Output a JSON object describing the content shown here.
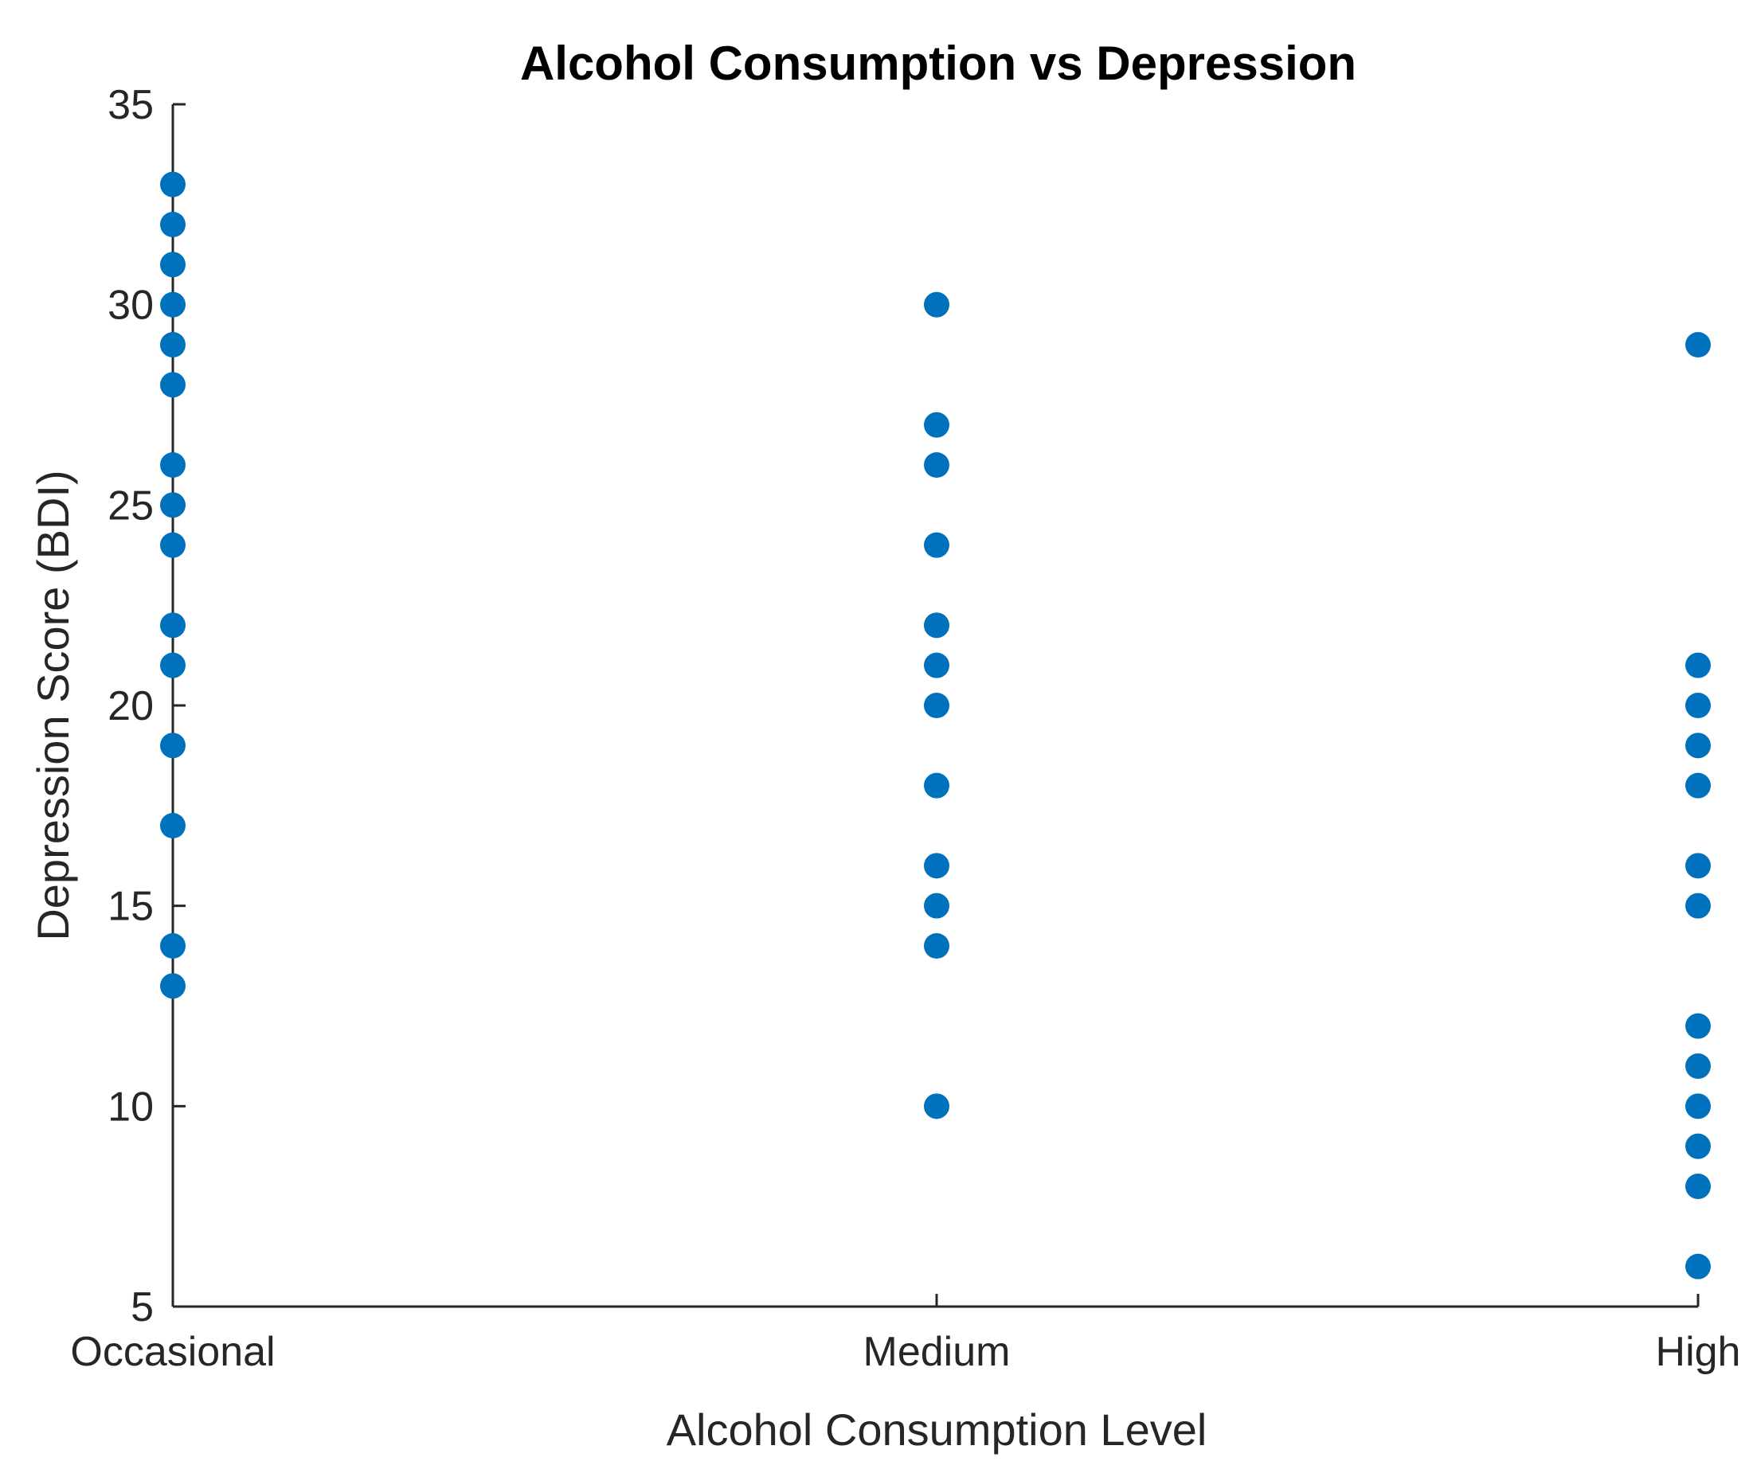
{
  "chart_data": {
    "type": "scatter",
    "title": "Alcohol Consumption vs Depression",
    "xlabel": "Alcohol Consumption Level",
    "ylabel": "Depression Score (BDI)",
    "categories": [
      "Occasional",
      "Medium",
      "High"
    ],
    "ylim": [
      5,
      35
    ],
    "yticks": [
      5,
      10,
      15,
      20,
      25,
      30,
      35
    ],
    "marker_color": "#0072BD",
    "series": [
      {
        "name": "Depression Score",
        "points": [
          {
            "x": "Occasional",
            "y": 33
          },
          {
            "x": "Occasional",
            "y": 32
          },
          {
            "x": "Occasional",
            "y": 31
          },
          {
            "x": "Occasional",
            "y": 30
          },
          {
            "x": "Occasional",
            "y": 29
          },
          {
            "x": "Occasional",
            "y": 28
          },
          {
            "x": "Occasional",
            "y": 26
          },
          {
            "x": "Occasional",
            "y": 25
          },
          {
            "x": "Occasional",
            "y": 24
          },
          {
            "x": "Occasional",
            "y": 22
          },
          {
            "x": "Occasional",
            "y": 21
          },
          {
            "x": "Occasional",
            "y": 19
          },
          {
            "x": "Occasional",
            "y": 17
          },
          {
            "x": "Occasional",
            "y": 14
          },
          {
            "x": "Occasional",
            "y": 13
          },
          {
            "x": "Medium",
            "y": 30
          },
          {
            "x": "Medium",
            "y": 27
          },
          {
            "x": "Medium",
            "y": 26
          },
          {
            "x": "Medium",
            "y": 24
          },
          {
            "x": "Medium",
            "y": 22
          },
          {
            "x": "Medium",
            "y": 21
          },
          {
            "x": "Medium",
            "y": 20
          },
          {
            "x": "Medium",
            "y": 18
          },
          {
            "x": "Medium",
            "y": 16
          },
          {
            "x": "Medium",
            "y": 15
          },
          {
            "x": "Medium",
            "y": 14
          },
          {
            "x": "Medium",
            "y": 10
          },
          {
            "x": "High",
            "y": 29
          },
          {
            "x": "High",
            "y": 21
          },
          {
            "x": "High",
            "y": 20
          },
          {
            "x": "High",
            "y": 19
          },
          {
            "x": "High",
            "y": 18
          },
          {
            "x": "High",
            "y": 16
          },
          {
            "x": "High",
            "y": 15
          },
          {
            "x": "High",
            "y": 12
          },
          {
            "x": "High",
            "y": 11
          },
          {
            "x": "High",
            "y": 10
          },
          {
            "x": "High",
            "y": 9
          },
          {
            "x": "High",
            "y": 8
          },
          {
            "x": "High",
            "y": 6
          }
        ]
      }
    ]
  }
}
